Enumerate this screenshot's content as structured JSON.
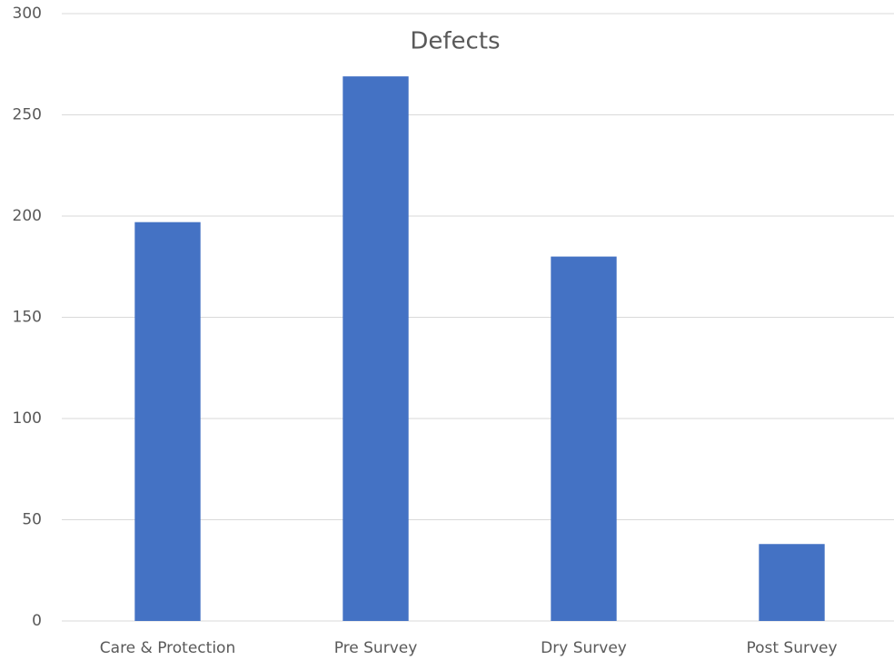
{
  "chart_data": {
    "type": "bar",
    "title": "Defects",
    "categories": [
      "Care & Protection",
      "Pre Survey",
      "Dry Survey",
      "Post Survey"
    ],
    "values": [
      197,
      269,
      180,
      38
    ],
    "color": "#4472c4",
    "ylim": [
      0,
      300
    ],
    "yticks": [
      0,
      50,
      100,
      150,
      200,
      250,
      300
    ],
    "grid": true
  }
}
